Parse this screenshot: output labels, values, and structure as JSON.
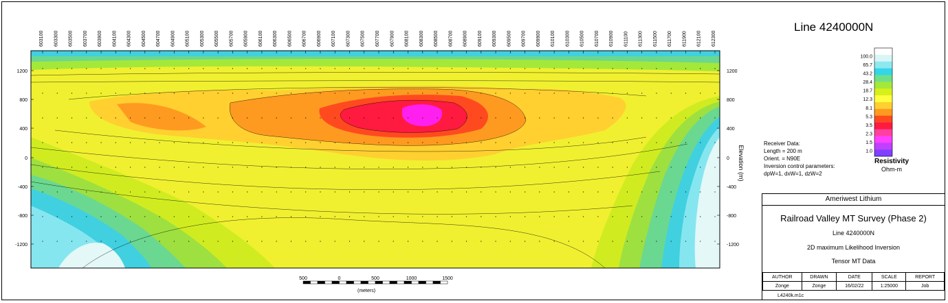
{
  "title": "Line 4240000N",
  "stations": [
    "603100",
    "603300",
    "603500",
    "603700",
    "603900",
    "604100",
    "604300",
    "604500",
    "604700",
    "604900",
    "605100",
    "605300",
    "605500",
    "605700",
    "605900",
    "606100",
    "606300",
    "606500",
    "606700",
    "606900",
    "607100",
    "607300",
    "607500",
    "607700",
    "607900",
    "608100",
    "608300",
    "608500",
    "608700",
    "608900",
    "609100",
    "609300",
    "609500",
    "609700",
    "609900",
    "610100",
    "610300",
    "610500",
    "610700",
    "610900",
    "611100",
    "611300",
    "611500",
    "611700",
    "611900",
    "612100",
    "612300"
  ],
  "elevation_ticks": [
    "1200",
    "800",
    "400",
    "0",
    "-400",
    "-800",
    "-1200"
  ],
  "elevation_axis_label": "Elevation (m)",
  "receiver_data": [
    "Receiver Data:",
    "Length = 200 m",
    "Orient. = N90E",
    "Inversion control parameters:",
    "dpW=1, dxW=1, dzW=2"
  ],
  "legend": {
    "title": "Resistivity",
    "unit": "Ohm-m",
    "values": [
      "100.0",
      "65.7",
      "43.2",
      "28.4",
      "18.7",
      "12.3",
      "8.1",
      "5.3",
      "3.5",
      "2.3",
      "1.5",
      "1.0"
    ],
    "colors": [
      "#ffffff",
      "#d8f6f6",
      "#8ee8f0",
      "#33d6e8",
      "#6ee08a",
      "#a4e83a",
      "#d8f01a",
      "#ffff40",
      "#ffd030",
      "#ff9a20",
      "#ff4a20",
      "#ff1a40",
      "#ff40a0",
      "#ff40ff",
      "#c040ff",
      "#8040ff"
    ]
  },
  "scale_bar": {
    "labels": [
      "500",
      "0",
      "500",
      "1000",
      "1500"
    ],
    "unit": "(meters)"
  },
  "title_block": {
    "company": "Ameriwest Lithium",
    "survey": "Railroad Valley MT Survey (Phase 2)",
    "line": "Line 4240000N",
    "inversion": "2D maximum Likelihood Inversion",
    "data_type": "Tensor MT Data",
    "headers": [
      "AUTHOR",
      "DRAWN",
      "DATE",
      "SCALE",
      "REPORT"
    ],
    "values": [
      "Zonge",
      "Zonge",
      "16/02/22",
      "1:25000",
      "Job"
    ],
    "file": "L4240k.m1c"
  }
}
